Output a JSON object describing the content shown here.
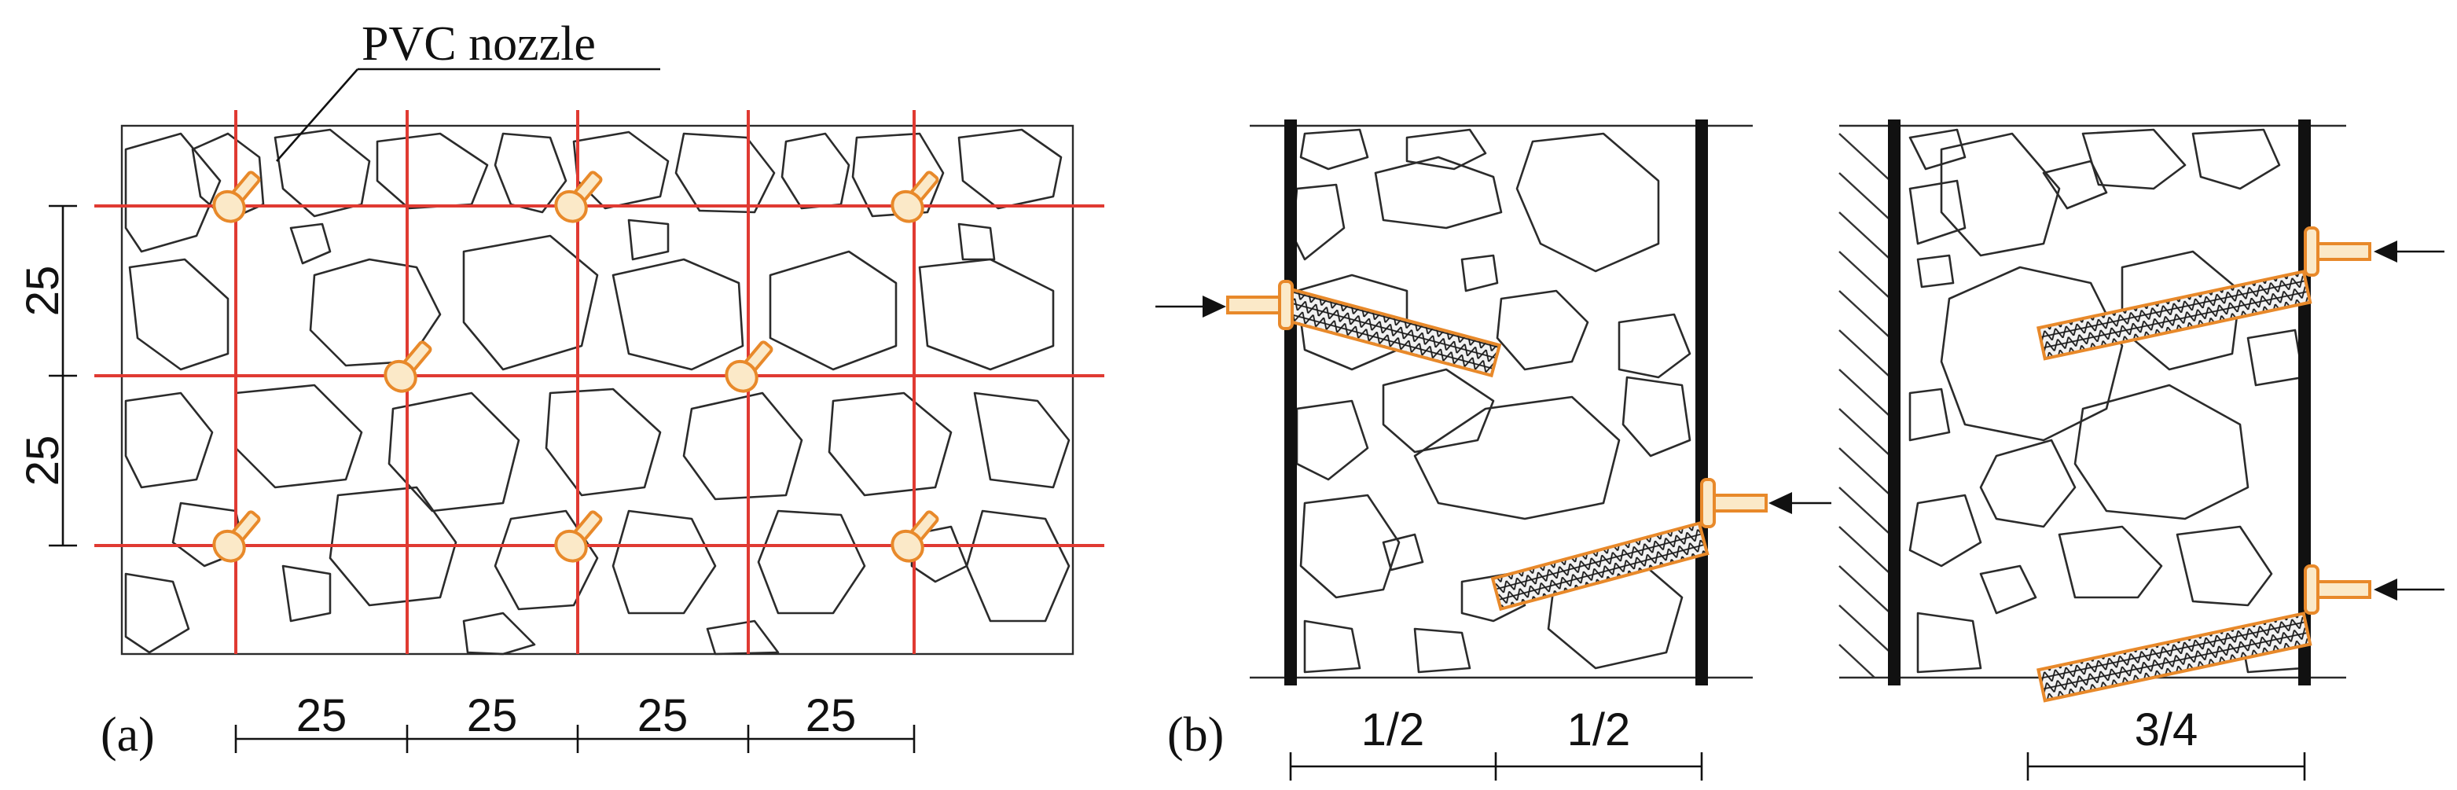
{
  "panel_a": {
    "label": "(a)",
    "callout": "PVC nozzle",
    "horizontal_spacings": [
      "25",
      "25",
      "25",
      "25"
    ],
    "vertical_spacings": [
      "25",
      "25"
    ],
    "grid_color": "#e03a32",
    "nozzle_color": "#e8892a"
  },
  "panel_b": {
    "label": "(b)",
    "case_two_sided": {
      "spacings": [
        "1/2",
        "1/2"
      ]
    },
    "case_one_sided": {
      "spacings": [
        "3/4"
      ]
    }
  }
}
